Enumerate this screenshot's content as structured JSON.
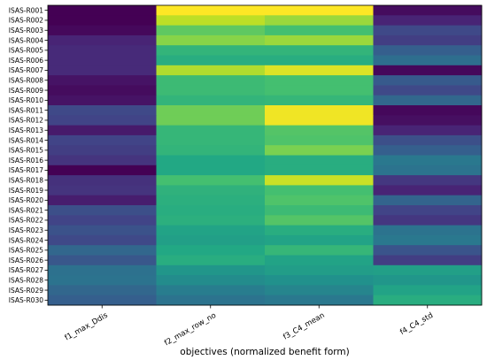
{
  "chart_data": {
    "type": "heatmap",
    "title": "",
    "xlabel": "objectives (normalized benefit form)",
    "ylabel": "",
    "colormap": "viridis",
    "vmin": 0,
    "vmax": 1,
    "columns": [
      "f1_max_Ddis",
      "f2_max_row_no",
      "f3_C4_mean",
      "f4_C4_std"
    ],
    "rows": [
      "ISAS-R001",
      "ISAS-R002",
      "ISAS-R003",
      "ISAS-R004",
      "ISAS-R005",
      "ISAS-R006",
      "ISAS-R007",
      "ISAS-R008",
      "ISAS-R009",
      "ISAS-R010",
      "ISAS-R011",
      "ISAS-R012",
      "ISAS-R013",
      "ISAS-R014",
      "ISAS-R015",
      "ISAS-R016",
      "ISAS-R017",
      "ISAS-R018",
      "ISAS-R019",
      "ISAS-R020",
      "ISAS-R021",
      "ISAS-R022",
      "ISAS-R023",
      "ISAS-R024",
      "ISAS-R025",
      "ISAS-R026",
      "ISAS-R027",
      "ISAS-R028",
      "ISAS-R029",
      "ISAS-R030"
    ],
    "values": [
      [
        0.0,
        1.0,
        1.0,
        0.03
      ],
      [
        0.0,
        0.9,
        0.85,
        0.1
      ],
      [
        0.02,
        0.75,
        0.7,
        0.22
      ],
      [
        0.1,
        0.82,
        0.85,
        0.18
      ],
      [
        0.12,
        0.65,
        0.65,
        0.3
      ],
      [
        0.12,
        0.62,
        0.62,
        0.36
      ],
      [
        0.12,
        0.88,
        0.95,
        0.02
      ],
      [
        0.05,
        0.68,
        0.7,
        0.28
      ],
      [
        0.03,
        0.68,
        0.7,
        0.22
      ],
      [
        0.05,
        0.65,
        0.66,
        0.33
      ],
      [
        0.22,
        0.78,
        0.98,
        0.02
      ],
      [
        0.2,
        0.78,
        0.98,
        0.04
      ],
      [
        0.07,
        0.66,
        0.73,
        0.1
      ],
      [
        0.2,
        0.66,
        0.72,
        0.24
      ],
      [
        0.18,
        0.65,
        0.8,
        0.3
      ],
      [
        0.15,
        0.6,
        0.62,
        0.4
      ],
      [
        0.0,
        0.6,
        0.62,
        0.38
      ],
      [
        0.14,
        0.7,
        0.92,
        0.16
      ],
      [
        0.15,
        0.64,
        0.7,
        0.1
      ],
      [
        0.08,
        0.63,
        0.72,
        0.32
      ],
      [
        0.24,
        0.62,
        0.68,
        0.2
      ],
      [
        0.2,
        0.63,
        0.73,
        0.16
      ],
      [
        0.25,
        0.58,
        0.62,
        0.38
      ],
      [
        0.22,
        0.56,
        0.58,
        0.4
      ],
      [
        0.33,
        0.6,
        0.66,
        0.26
      ],
      [
        0.27,
        0.62,
        0.58,
        0.18
      ],
      [
        0.37,
        0.52,
        0.55,
        0.56
      ],
      [
        0.38,
        0.48,
        0.5,
        0.52
      ],
      [
        0.33,
        0.42,
        0.45,
        0.58
      ],
      [
        0.3,
        0.38,
        0.4,
        0.62
      ]
    ],
    "grid": false,
    "legend": "none"
  }
}
